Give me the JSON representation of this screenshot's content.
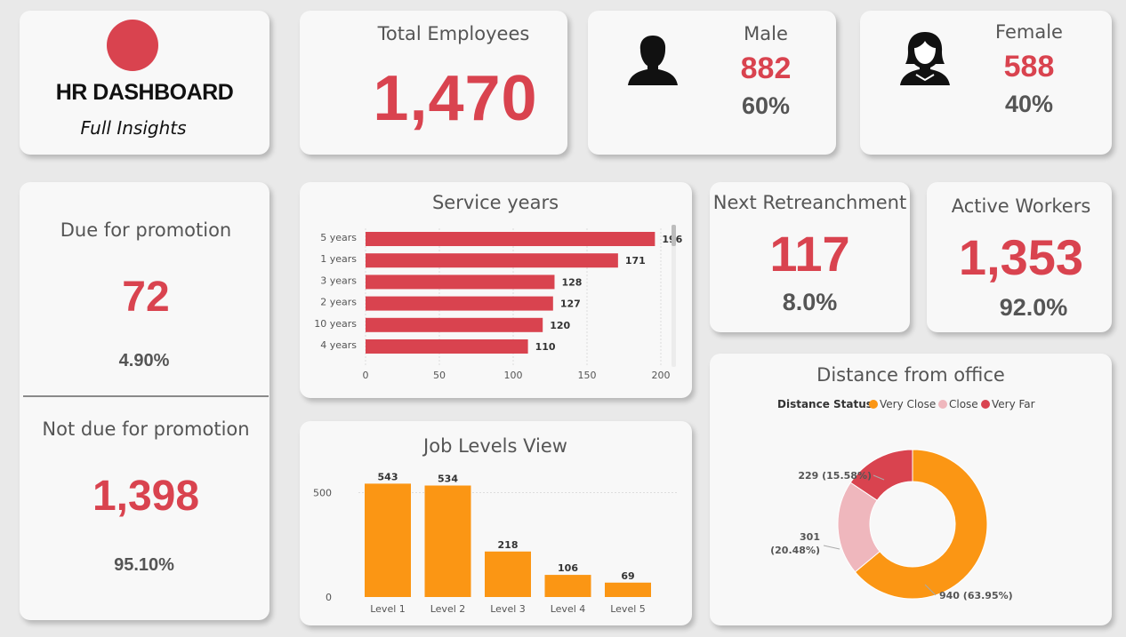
{
  "brand": {
    "title": "HR DASHBOARD",
    "subtitle": "Full Insights",
    "logo_color": "#d9434f"
  },
  "total": {
    "title": "Total Employees",
    "value": "1,470"
  },
  "male": {
    "title": "Male",
    "value": "882",
    "pct": "60%"
  },
  "female": {
    "title": "Female",
    "value": "588",
    "pct": "40%"
  },
  "promotion": {
    "due_title": "Due for promotion",
    "due_value": "72",
    "due_pct": "4.90%",
    "not_title": "Not due for promotion",
    "not_value": "1,398",
    "not_pct": "95.10%"
  },
  "retrench": {
    "title": "Next Retreanchment",
    "value": "117",
    "pct": "8.0%"
  },
  "active": {
    "title": "Active Workers",
    "value": "1,353",
    "pct": "92.0%"
  },
  "colors": {
    "red": "#d9434f",
    "orange": "#fb9614",
    "pink": "#efb7bd",
    "grey": "#555555"
  },
  "chart_data": [
    {
      "type": "bar",
      "orientation": "horizontal",
      "title": "Service years",
      "categories": [
        "5 years",
        "1 years",
        "3 years",
        "2 years",
        "10 years",
        "4 years"
      ],
      "values": [
        196,
        171,
        128,
        127,
        120,
        110
      ],
      "xticks": [
        "0",
        "50",
        "100",
        "150",
        "200"
      ],
      "xlim": [
        0,
        200
      ],
      "grid": true,
      "color": "#d9434f"
    },
    {
      "type": "bar",
      "title": "Job Levels View",
      "categories": [
        "Level 1",
        "Level 2",
        "Level 3",
        "Level 4",
        "Level 5"
      ],
      "values": [
        543,
        534,
        218,
        106,
        69
      ],
      "yticks": [
        "0",
        "500"
      ],
      "ylim": [
        0,
        600
      ],
      "color": "#fb9614"
    },
    {
      "type": "pie",
      "title": "Distance from office",
      "legend_title": "Distance Status",
      "legend_position": "top",
      "slices": [
        {
          "name": "Very Close",
          "value": 940,
          "label": "940 (63.95%)",
          "color": "#fb9614"
        },
        {
          "name": "Close",
          "value": 301,
          "label": "301 (20.48%)",
          "color": "#efb7bd"
        },
        {
          "name": "Very Far",
          "value": 229,
          "label": "229 (15.58%)",
          "color": "#d9434f"
        }
      ]
    }
  ]
}
